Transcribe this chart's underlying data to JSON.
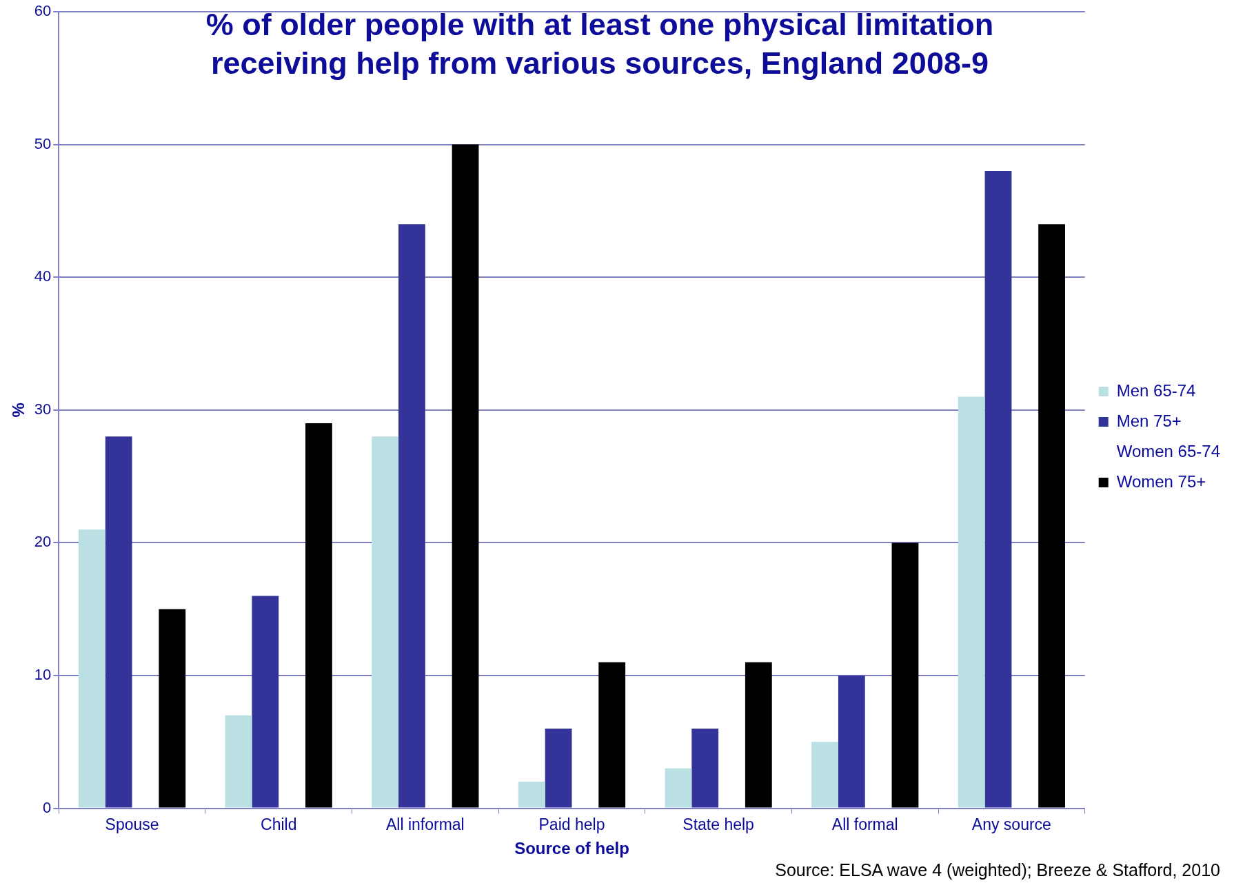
{
  "chart_data": {
    "type": "bar",
    "title": "% of older people with at least one physical limitation receiving help from various sources, England 2008-9",
    "xlabel": "Source of help",
    "ylabel": "%",
    "annotations": [
      "Source: ELSA wave 4 (weighted); Breeze & Stafford, 2010"
    ],
    "categories": [
      "Spouse",
      "Child",
      "All informal",
      "Paid help",
      "State help",
      "All formal",
      "Any source"
    ],
    "series": [
      {
        "name": "Men 65-74",
        "color": "#bbe0e3",
        "values": [
          21,
          7,
          28,
          2,
          3,
          5,
          31
        ]
      },
      {
        "name": "Men 75+",
        "color": "#333399",
        "values": [
          28,
          16,
          44,
          6,
          6,
          10,
          48
        ]
      },
      {
        "name": "Women 65-74",
        "values": [
          null,
          null,
          null,
          null,
          null,
          null,
          null
        ]
      },
      {
        "name": "Women 75+",
        "color": "#000000",
        "values": [
          15,
          29,
          50,
          11,
          11,
          20,
          44
        ]
      }
    ],
    "ylim": [
      0,
      60
    ],
    "yticks": [
      0,
      10,
      20,
      30,
      40,
      50,
      60
    ],
    "grid": "y",
    "legend": "right"
  }
}
